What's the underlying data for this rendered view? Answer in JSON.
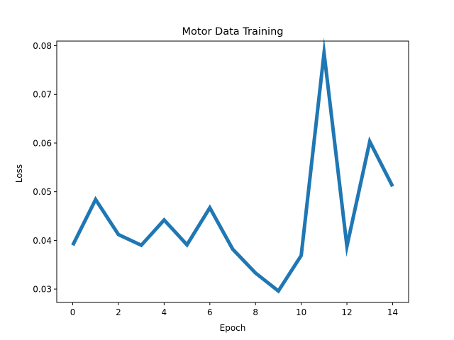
{
  "chart_data": {
    "type": "line",
    "title": "Motor Data Training",
    "xlabel": "Epoch",
    "ylabel": "Loss",
    "x": [
      0,
      1,
      2,
      3,
      4,
      5,
      6,
      7,
      8,
      9,
      10,
      11,
      12,
      13,
      14
    ],
    "series": [
      {
        "values": [
          0.039,
          0.0484,
          0.0412,
          0.039,
          0.0442,
          0.0391,
          0.0467,
          0.0382,
          0.0333,
          0.0296,
          0.0369,
          0.0785,
          0.0388,
          0.0603,
          0.0511
        ],
        "color": "#1f77b4"
      }
    ],
    "xlim": [
      -0.7,
      14.7
    ],
    "ylim": [
      0.02725,
      0.08095
    ],
    "xticks": [
      0,
      2,
      4,
      6,
      8,
      10,
      12,
      14
    ],
    "xtick_labels": [
      "0",
      "2",
      "4",
      "6",
      "8",
      "10",
      "12",
      "14"
    ],
    "yticks": [
      0.03,
      0.04,
      0.05,
      0.06,
      0.07,
      0.08
    ],
    "ytick_labels": [
      "0.03",
      "0.04",
      "0.05",
      "0.06",
      "0.07",
      "0.08"
    ],
    "grid": false,
    "legend": false
  }
}
